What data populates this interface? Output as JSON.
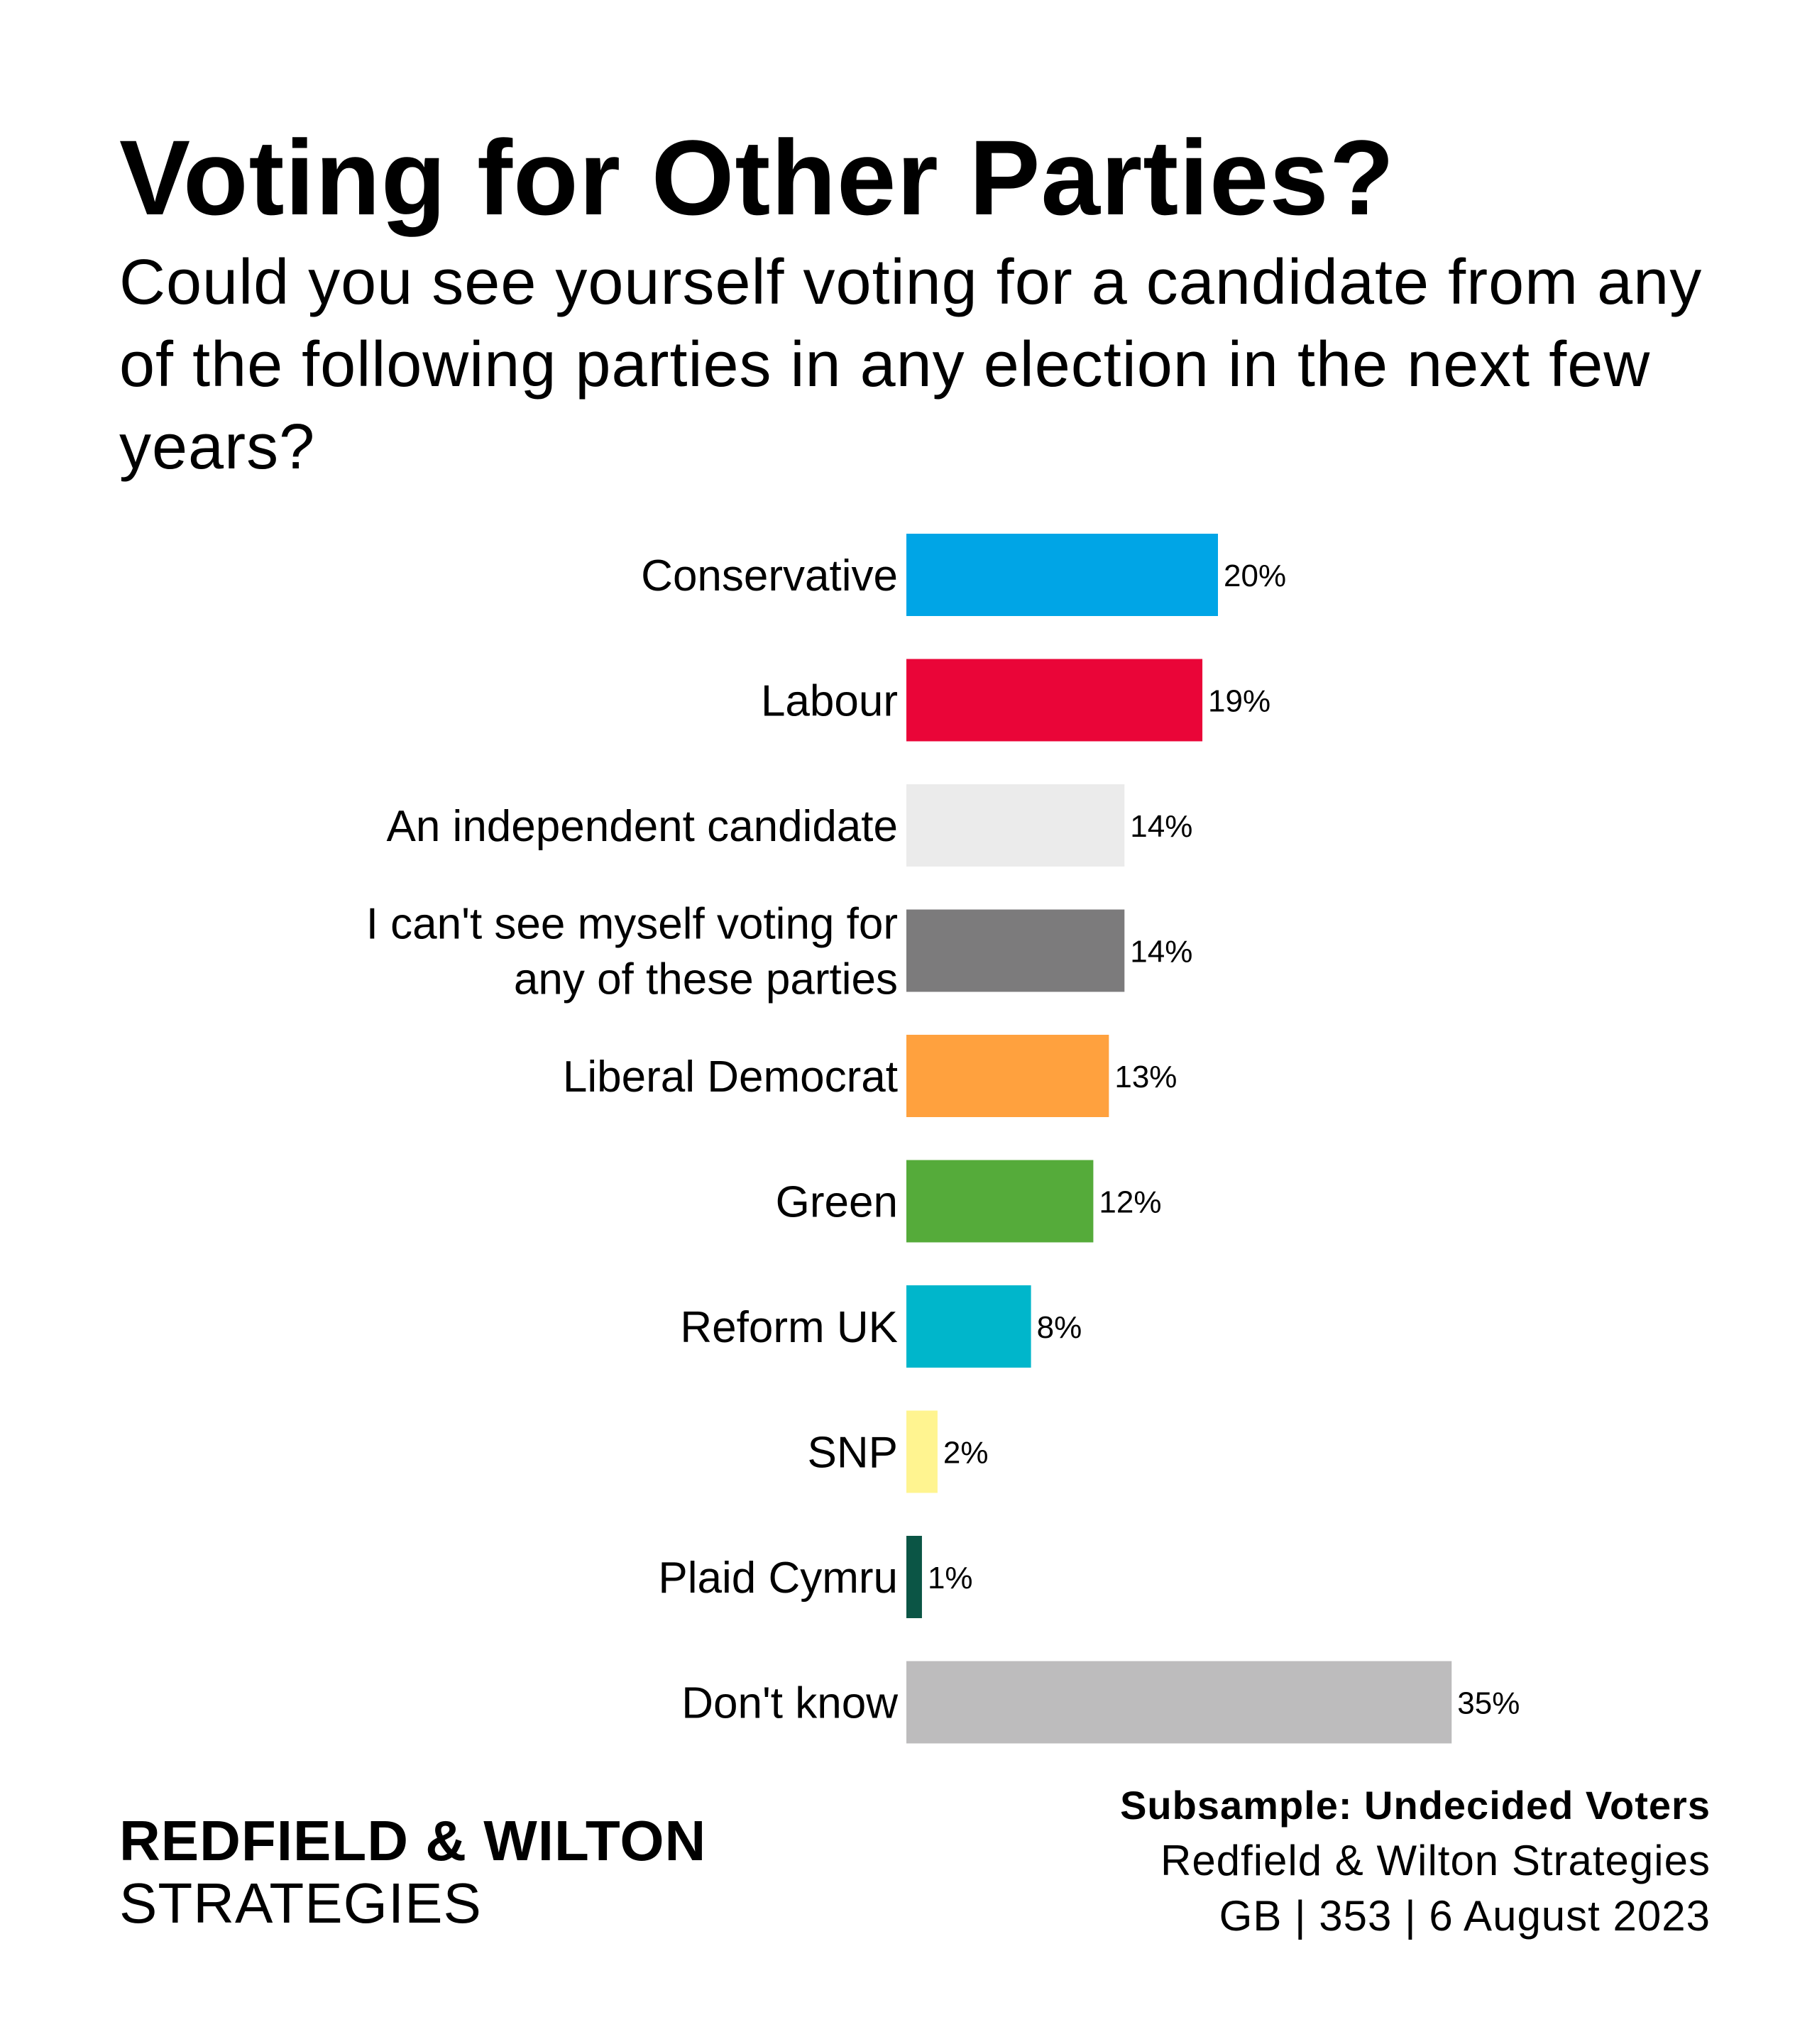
{
  "header": {
    "title": "Voting for Other Parties?",
    "subtitle": "Could you see yourself voting for a candidate from any of the following parties in any election in the next few years?"
  },
  "chart_data": {
    "type": "bar",
    "orientation": "horizontal",
    "categories": [
      [
        "Conservative"
      ],
      [
        "Labour"
      ],
      [
        "An independent candidate"
      ],
      [
        "I can't see myself voting for",
        "any of these parties"
      ],
      [
        "Liberal Democrat"
      ],
      [
        "Green"
      ],
      [
        "Reform UK"
      ],
      [
        "SNP"
      ],
      [
        "Plaid Cymru"
      ],
      [
        "Don't know"
      ]
    ],
    "values": [
      20,
      19,
      14,
      14,
      13,
      12,
      8,
      2,
      1,
      35
    ],
    "value_labels": [
      "20%",
      "19%",
      "14%",
      "14%",
      "13%",
      "12%",
      "8%",
      "2%",
      "1%",
      "35%"
    ],
    "colors": [
      "#00A5E6",
      "#EA0538",
      "#EBEBEB",
      "#7C7B7C",
      "#FFA13E",
      "#55AB3A",
      "#00B6CB",
      "#FFF490",
      "#0B5545",
      "#BDBCBD"
    ],
    "xlim": [
      0,
      35
    ],
    "grid": false,
    "legend": "none"
  },
  "footer": {
    "brand_line1": "REDFIELD & WILTON",
    "brand_line2": "STRATEGIES",
    "subsample": "Subsample: Undecided Voters",
    "source": "Redfield & Wilton Strategies",
    "meta": "GB | 353 | 6 August 2023"
  }
}
